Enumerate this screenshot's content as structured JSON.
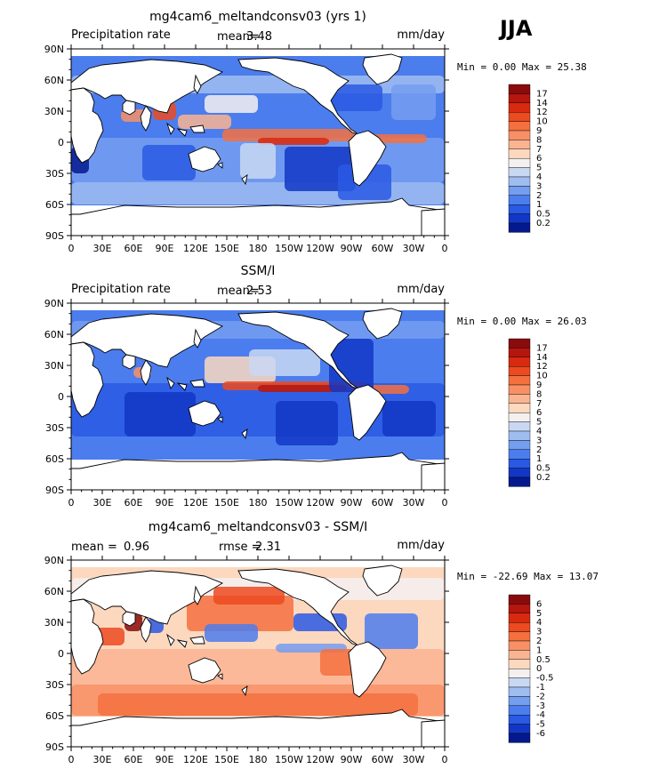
{
  "season": "JJA",
  "panels": [
    {
      "id": "model",
      "title": "mg4cam6_meltandconsv03 (yrs 1)",
      "left_label": "Precipitation rate",
      "stat1_label": "mean=",
      "stat1_value": "3.48",
      "stat2_label": "",
      "stat2_value": "",
      "units": "mm/day",
      "minmax": "Min =    0.00 Max =   25.38",
      "colorbar": {
        "labels": [
          "17",
          "14",
          "12",
          "10",
          "9",
          "8",
          "7",
          "6",
          "5",
          "4",
          "3",
          "2",
          "1",
          "0.5",
          "0.2"
        ],
        "colors": [
          "#8a0b0b",
          "#b5160e",
          "#d9290f",
          "#ec4a20",
          "#f4703f",
          "#f89066",
          "#fab492",
          "#fcd8bf",
          "#f5f0f0",
          "#c9d8f2",
          "#a0bdf0",
          "#759df0",
          "#4c7ded",
          "#2a59e3",
          "#1237c6",
          "#05198e"
        ]
      }
    },
    {
      "id": "obs",
      "title": "SSM/I",
      "left_label": "Precipitation rate",
      "stat1_label": "mean=",
      "stat1_value": "2.53",
      "stat2_label": "",
      "stat2_value": "",
      "units": "mm/day",
      "minmax": "Min =    0.00 Max =   26.03",
      "colorbar": {
        "labels": [
          "17",
          "14",
          "12",
          "10",
          "9",
          "8",
          "7",
          "6",
          "5",
          "4",
          "3",
          "2",
          "1",
          "0.5",
          "0.2"
        ],
        "colors": [
          "#8a0b0b",
          "#b5160e",
          "#d9290f",
          "#ec4a20",
          "#f4703f",
          "#f89066",
          "#fab492",
          "#fcd8bf",
          "#f5f0f0",
          "#c9d8f2",
          "#a0bdf0",
          "#759df0",
          "#4c7ded",
          "#2a59e3",
          "#1237c6",
          "#05198e"
        ]
      }
    },
    {
      "id": "diff",
      "title": "mg4cam6_meltandconsv03 - SSM/I",
      "left_label": "",
      "stat1_label": "mean =",
      "stat1_value": "0.96",
      "stat2_label": "rmse =",
      "stat2_value": "2.31",
      "units": "mm/day",
      "minmax": "Min = -22.69 Max =   13.07",
      "colorbar": {
        "labels": [
          "6",
          "5",
          "4",
          "3",
          "2",
          "1",
          "0.5",
          "0",
          "-0.5",
          "-1",
          "-2",
          "-3",
          "-4",
          "-5",
          "-6"
        ],
        "colors": [
          "#8a0b0b",
          "#b5160e",
          "#d9290f",
          "#ec4a20",
          "#f4703f",
          "#f89066",
          "#fab492",
          "#fcd8bf",
          "#f5f0f0",
          "#c9d8f2",
          "#a0bdf0",
          "#759df0",
          "#4c7ded",
          "#2a59e3",
          "#1237c6",
          "#05198e"
        ]
      }
    }
  ],
  "lat_labels": [
    "90N",
    "60N",
    "30N",
    "0",
    "30S",
    "60S",
    "90S"
  ],
  "lon_labels": [
    "0",
    "30E",
    "60E",
    "90E",
    "120E",
    "150E",
    "180",
    "150W",
    "120W",
    "90W",
    "60W",
    "30W",
    "0"
  ]
}
